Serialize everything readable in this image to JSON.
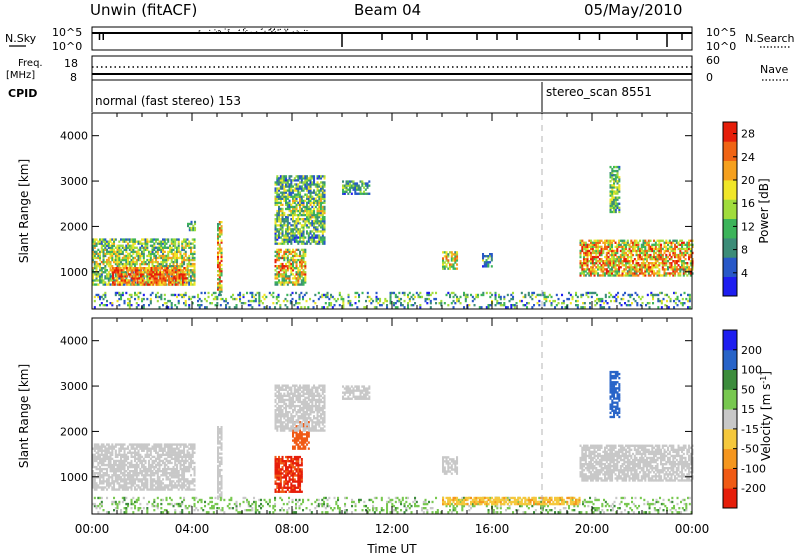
{
  "header": {
    "station": "Unwin (fitACF)",
    "beam": "Beam 04",
    "date": "05/May/2010"
  },
  "sky_panel": {
    "left_label": "N.Sky",
    "left_ticks": [
      "10^5",
      "10^0"
    ],
    "right_ticks": [
      "10^5",
      "10^0"
    ],
    "right_label": "N.Search"
  },
  "freq_panel": {
    "left_label_line1": "Freq.",
    "left_label_line2": "[MHz]",
    "left_ticks": [
      "18",
      "8"
    ],
    "right_ticks": [
      "60",
      "0"
    ],
    "right_label": "Nave"
  },
  "cpid_panel": {
    "label": "CPID",
    "segments": [
      {
        "text": "normal (fast stereo) 153",
        "start_hour": 0
      },
      {
        "text": "stereo_scan 8551",
        "start_hour": 18
      }
    ]
  },
  "colors": {
    "power_scale": [
      "#1e1ef0",
      "#2858c8",
      "#3c8c78",
      "#3cb45a",
      "#a0dc3c",
      "#f0e628",
      "#f5a01e",
      "#f06414",
      "#e61e0a"
    ],
    "velocity_scale": [
      "#e61e0a",
      "#f05a14",
      "#f5961e",
      "#f5c83c",
      "#c8c8c8",
      "#78c850",
      "#3c8c3c",
      "#2864c8",
      "#1e1ef0"
    ],
    "dashed_line": "#b4b4b4"
  },
  "chart_data": [
    {
      "type": "heatmap",
      "name": "power",
      "xlabel": "",
      "ylabel": "Slant Range [km]",
      "xlim": [
        0,
        24
      ],
      "ylim": [
        180,
        4500
      ],
      "yticks": [
        1000,
        2000,
        3000,
        4000
      ],
      "colorbar_label": "Power [dB]",
      "colorbar_ticks": [
        "4",
        "8",
        "12",
        "16",
        "20",
        "24",
        "28"
      ],
      "colorbar_range": [
        0,
        30
      ],
      "regions": [
        {
          "t0": 0.0,
          "t1": 4.1,
          "r0": 700,
          "r1": 1700,
          "v": 12,
          "spread": 8
        },
        {
          "t0": 0.8,
          "t1": 3.8,
          "r0": 700,
          "r1": 1100,
          "v": 22,
          "spread": 6
        },
        {
          "t0": 3.8,
          "t1": 4.1,
          "r0": 1900,
          "r1": 2100,
          "v": 10,
          "spread": 6
        },
        {
          "t0": 5.0,
          "t1": 5.2,
          "r0": 500,
          "r1": 2100,
          "v": 18,
          "spread": 10
        },
        {
          "t0": 7.3,
          "t1": 8.5,
          "r0": 700,
          "r1": 1500,
          "v": 16,
          "spread": 10
        },
        {
          "t0": 7.3,
          "t1": 9.3,
          "r0": 1600,
          "r1": 3100,
          "v": 10,
          "spread": 8
        },
        {
          "t0": 10.0,
          "t1": 11.1,
          "r0": 2700,
          "r1": 3000,
          "v": 8,
          "spread": 6
        },
        {
          "t0": 14.0,
          "t1": 14.6,
          "r0": 1050,
          "r1": 1450,
          "v": 14,
          "spread": 8
        },
        {
          "t0": 15.6,
          "t1": 16.0,
          "r0": 1100,
          "r1": 1400,
          "v": 8,
          "spread": 6
        },
        {
          "t0": 19.5,
          "t1": 24.0,
          "r0": 900,
          "r1": 1700,
          "v": 18,
          "spread": 10
        },
        {
          "t0": 20.7,
          "t1": 21.1,
          "r0": 2300,
          "r1": 3300,
          "v": 10,
          "spread": 6
        },
        {
          "t0": 0.0,
          "t1": 24.0,
          "r0": 200,
          "r1": 550,
          "v": 8,
          "spread": 8
        }
      ]
    },
    {
      "type": "heatmap",
      "name": "velocity",
      "xlabel": "Time UT",
      "ylabel": "Slant Range [km]",
      "xlim": [
        0,
        24
      ],
      "ylim": [
        180,
        4500
      ],
      "yticks": [
        1000,
        2000,
        3000,
        4000
      ],
      "xticks": [
        "00:00",
        "04:00",
        "08:00",
        "12:00",
        "16:00",
        "20:00",
        "00:00"
      ],
      "colorbar_label": "Velocity [m s^-1]",
      "colorbar_ticks": [
        "-200",
        "-100",
        "-50",
        "-15",
        "15",
        "50",
        "100",
        "200"
      ],
      "regions": [
        {
          "t0": 0.0,
          "t1": 4.1,
          "r0": 700,
          "r1": 1700,
          "v": 0,
          "spread": 10
        },
        {
          "t0": 5.0,
          "t1": 5.2,
          "r0": 500,
          "r1": 2100,
          "v": 0,
          "spread": 10
        },
        {
          "t0": 7.3,
          "t1": 8.4,
          "r0": 650,
          "r1": 1450,
          "v": -210,
          "spread": 30
        },
        {
          "t0": 8.0,
          "t1": 8.7,
          "r0": 1600,
          "r1": 2200,
          "v": -160,
          "spread": 40
        },
        {
          "t0": 7.3,
          "t1": 9.3,
          "r0": 2000,
          "r1": 3000,
          "v": 0,
          "spread": 10
        },
        {
          "t0": 10.0,
          "t1": 11.1,
          "r0": 2700,
          "r1": 3000,
          "v": 0,
          "spread": 10
        },
        {
          "t0": 14.0,
          "t1": 14.6,
          "r0": 1050,
          "r1": 1450,
          "v": 0,
          "spread": 10
        },
        {
          "t0": 19.5,
          "t1": 24.0,
          "r0": 900,
          "r1": 1700,
          "v": 0,
          "spread": 12
        },
        {
          "t0": 20.7,
          "t1": 21.1,
          "r0": 2300,
          "r1": 3300,
          "v": 160,
          "spread": 30
        },
        {
          "t0": 0.0,
          "t1": 24.0,
          "r0": 200,
          "r1": 550,
          "v": 30,
          "spread": 30
        },
        {
          "t0": 14.0,
          "t1": 19.5,
          "r0": 380,
          "r1": 520,
          "v": -45,
          "spread": 10
        }
      ]
    }
  ]
}
